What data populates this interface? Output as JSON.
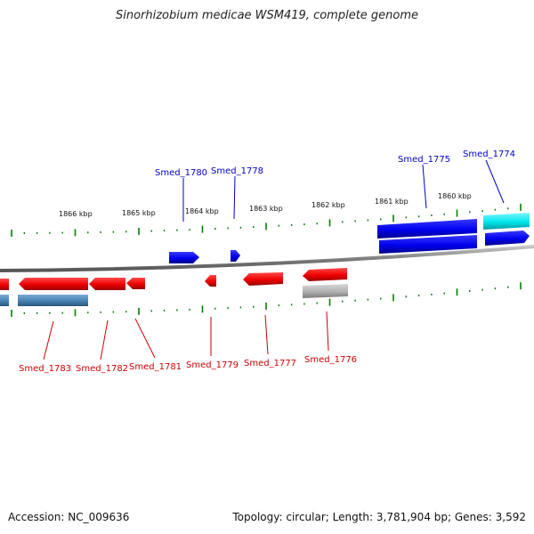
{
  "title": "Sinorhizobium medicae WSM419, complete genome",
  "footer": {
    "accession": "Accession: NC_009636",
    "summary": "Topology: circular; Length: 3,781,904 bp; Genes: 3,592"
  },
  "scale_ticks": [
    "1866 kbp",
    "1865 kbp",
    "1864 kbp",
    "1863 kbp",
    "1862 kbp",
    "1861 kbp",
    "1860 kbp"
  ],
  "genes_top": [
    {
      "name": "Smed_1780",
      "color": "#0000cc"
    },
    {
      "name": "Smed_1778",
      "color": "#0000cc"
    },
    {
      "name": "Smed_1775",
      "color": "#0000cc"
    },
    {
      "name": "Smed_1774",
      "color": "#0000cc"
    }
  ],
  "genes_bottom": [
    {
      "name": "Smed_1783",
      "color": "#cc0000"
    },
    {
      "name": "Smed_1782",
      "color": "#cc0000"
    },
    {
      "name": "Smed_1781",
      "color": "#cc0000"
    },
    {
      "name": "Smed_1779",
      "color": "#cc0000"
    },
    {
      "name": "Smed_1777",
      "color": "#cc0000"
    },
    {
      "name": "Smed_1776",
      "color": "#cc0000"
    }
  ],
  "colors": {
    "forward_gene": "#0000ee",
    "reverse_gene": "#ee0000",
    "rna_gene": "#00e5ee",
    "pseudo_gene": "#b0b0b0",
    "other_gene": "#4682b4",
    "backbone": "#808080",
    "tick": "#008000"
  }
}
